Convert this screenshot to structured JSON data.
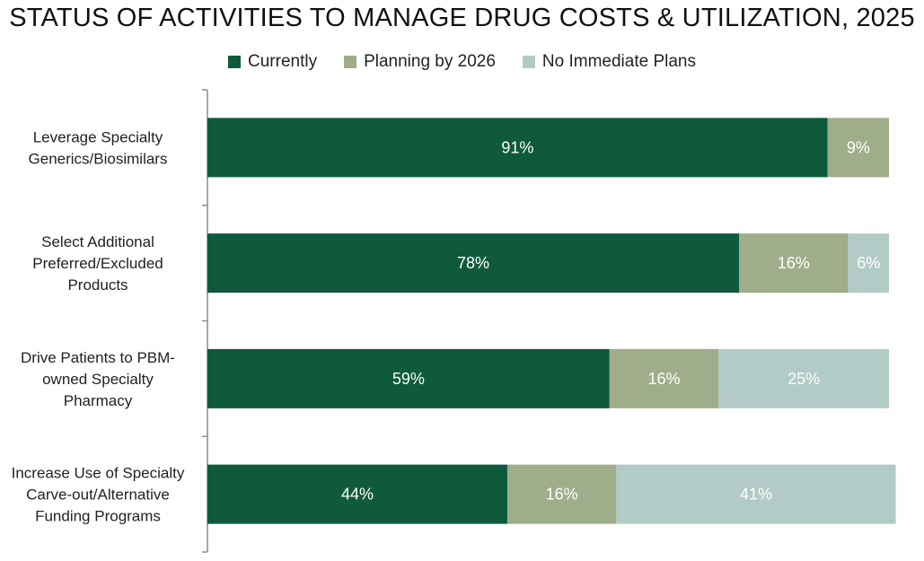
{
  "chart_data": {
    "type": "bar",
    "orientation": "horizontal",
    "stacked": true,
    "title": "STATUS OF ACTIVITIES TO MANAGE DRUG COSTS & UTILIZATION, 2025",
    "categories": [
      [
        "Leverage Specialty",
        "Generics/Biosimilars"
      ],
      [
        "Select Additional",
        "Preferred/Excluded",
        "Products"
      ],
      [
        "Drive Patients to PBM-",
        "owned Specialty",
        "Pharmacy"
      ],
      [
        "Increase Use of Specialty",
        "Carve-out/Alternative",
        "Funding Programs"
      ]
    ],
    "series": [
      {
        "name": "Currently",
        "color": "#0f5a3c",
        "values": [
          91,
          78,
          59,
          44
        ],
        "labels": [
          "91%",
          "78%",
          "59%",
          "44%"
        ]
      },
      {
        "name": "Planning by 2026",
        "color": "#a0ad8a",
        "values": [
          9,
          16,
          16,
          16
        ],
        "labels": [
          "9%",
          "16%",
          "16%",
          "16%"
        ]
      },
      {
        "name": "No Immediate Plans",
        "color": "#b2cbc6",
        "values": [
          0,
          6,
          25,
          41
        ],
        "labels": [
          "",
          "6%",
          "25%",
          "41%"
        ]
      }
    ],
    "xlim": [
      0,
      100
    ],
    "grid": false,
    "legend_position": "top-center"
  }
}
